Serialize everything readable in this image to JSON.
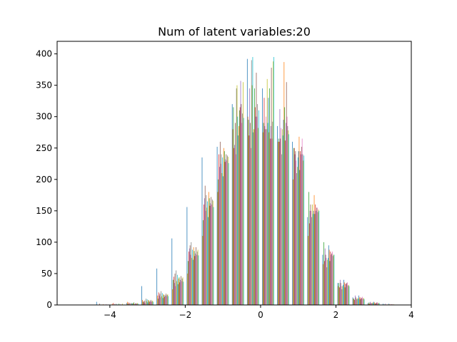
{
  "chart_data": {
    "type": "bar",
    "title": "Num of latent variables:20",
    "xlabel": "",
    "ylabel": "",
    "xlim": [
      -5.4,
      4.0
    ],
    "ylim": [
      0,
      420
    ],
    "grid": false,
    "legend": "none",
    "x_ticks": [
      -4,
      -2,
      0,
      2,
      4
    ],
    "x_tick_labels": [
      "−4",
      "−2",
      "0",
      "2",
      "4"
    ],
    "y_ticks": [
      0,
      50,
      100,
      150,
      200,
      250,
      300,
      350,
      400
    ],
    "y_tick_labels": [
      "0",
      "50",
      "100",
      "150",
      "200",
      "250",
      "300",
      "350",
      "400"
    ],
    "bin_edges": [
      -4.8,
      -4.4,
      -4.0,
      -3.6,
      -3.2,
      -2.8,
      -2.4,
      -2.0,
      -1.6,
      -1.2,
      -0.8,
      -0.4,
      0.0,
      0.4,
      0.8,
      1.2,
      1.6,
      2.0,
      2.4,
      2.8,
      3.2,
      3.6
    ],
    "series_colors": [
      "#1f77b4",
      "#ff7f0e",
      "#2ca02c",
      "#d62728",
      "#9467bd",
      "#8c564b",
      "#e377c2",
      "#7f7f7f",
      "#bcbd22",
      "#17becf",
      "#1f77b4",
      "#ff7f0e",
      "#2ca02c",
      "#d62728",
      "#9467bd",
      "#8c564b",
      "#e377c2",
      "#7f7f7f",
      "#bcbd22",
      "#17becf"
    ],
    "series": [
      {
        "values": [
          0,
          5,
          0,
          3,
          30,
          58,
          106,
          156,
          235,
          252,
          320,
          392,
          345,
          285,
          260,
          140,
          80,
          35,
          12,
          3,
          2
        ]
      },
      {
        "values": [
          0,
          0,
          2,
          5,
          8,
          15,
          25,
          50,
          110,
          180,
          280,
          300,
          275,
          260,
          200,
          110,
          65,
          30,
          10,
          2,
          0
        ]
      },
      {
        "values": [
          0,
          0,
          0,
          2,
          5,
          10,
          40,
          70,
          135,
          200,
          315,
          295,
          290,
          265,
          250,
          180,
          100,
          35,
          10,
          4,
          1
        ]
      },
      {
        "values": [
          0,
          0,
          3,
          4,
          6,
          20,
          45,
          85,
          160,
          240,
          250,
          270,
          330,
          260,
          250,
          130,
          70,
          28,
          8,
          2,
          0
        ]
      },
      {
        "values": [
          0,
          0,
          0,
          1,
          4,
          15,
          35,
          90,
          170,
          220,
          255,
          345,
          285,
          312,
          240,
          150,
          90,
          40,
          15,
          5,
          2
        ]
      },
      {
        "values": [
          0,
          2,
          1,
          3,
          7,
          18,
          50,
          95,
          190,
          260,
          290,
          290,
          280,
          265,
          245,
          160,
          80,
          35,
          12,
          3,
          0
        ]
      },
      {
        "values": [
          0,
          0,
          0,
          2,
          3,
          12,
          30,
          80,
          150,
          225,
          240,
          250,
          300,
          282,
          230,
          150,
          75,
          30,
          10,
          3,
          1
        ]
      },
      {
        "values": [
          0,
          0,
          2,
          3,
          10,
          22,
          55,
          100,
          175,
          240,
          345,
          390,
          280,
          240,
          210,
          140,
          60,
          25,
          9,
          3,
          0
        ]
      },
      {
        "values": [
          0,
          0,
          0,
          2,
          6,
          14,
          38,
          75,
          155,
          210,
          350,
          350,
          360,
          280,
          220,
          160,
          72,
          30,
          11,
          4,
          1
        ]
      },
      {
        "values": [
          0,
          0,
          1,
          3,
          9,
          19,
          48,
          88,
          165,
          235,
          300,
          395,
          290,
          270,
          235,
          145,
          75,
          32,
          10,
          3,
          0
        ]
      },
      {
        "values": [
          0,
          0,
          0,
          2,
          4,
          11,
          33,
          72,
          140,
          205,
          270,
          275,
          330,
          295,
          245,
          150,
          95,
          40,
          15,
          5,
          2
        ]
      },
      {
        "values": [
          0,
          1,
          0,
          3,
          8,
          17,
          42,
          92,
          180,
          250,
          285,
          280,
          275,
          387,
          268,
          175,
          88,
          36,
          12,
          4,
          1
        ]
      },
      {
        "values": [
          0,
          0,
          2,
          4,
          7,
          16,
          44,
          86,
          170,
          245,
          310,
          345,
          345,
          315,
          215,
          145,
          70,
          28,
          9,
          2,
          0
        ]
      },
      {
        "values": [
          0,
          0,
          0,
          1,
          5,
          13,
          36,
          78,
          158,
          228,
          315,
          315,
          265,
          262,
          245,
          160,
          85,
          34,
          12,
          3,
          1
        ]
      },
      {
        "values": [
          0,
          0,
          1,
          2,
          6,
          15,
          40,
          82,
          162,
          232,
          357,
          300,
          285,
          290,
          240,
          150,
          80,
          33,
          10,
          3,
          0
        ]
      },
      {
        "values": [
          0,
          0,
          0,
          3,
          8,
          18,
          46,
          92,
          172,
          240,
          320,
          370,
          378,
          355,
          252,
          155,
          82,
          35,
          11,
          4,
          1
        ]
      },
      {
        "values": [
          0,
          1,
          1,
          2,
          5,
          14,
          38,
          80,
          160,
          230,
          290,
          300,
          265,
          300,
          265,
          155,
          85,
          36,
          13,
          4,
          1
        ]
      },
      {
        "values": [
          0,
          0,
          0,
          2,
          6,
          16,
          42,
          85,
          168,
          238,
          305,
          320,
          292,
          285,
          240,
          148,
          78,
          31,
          10,
          3,
          0
        ]
      },
      {
        "values": [
          0,
          0,
          2,
          3,
          7,
          17,
          44,
          88,
          166,
          236,
          355,
          282,
          388,
          278,
          230,
          152,
          80,
          32,
          11,
          3,
          1
        ]
      },
      {
        "values": [
          0,
          0,
          0,
          2,
          5,
          14,
          37,
          79,
          156,
          226,
          298,
          310,
          395,
          272,
          238,
          150,
          80,
          30,
          9,
          3,
          0
        ]
      }
    ]
  }
}
